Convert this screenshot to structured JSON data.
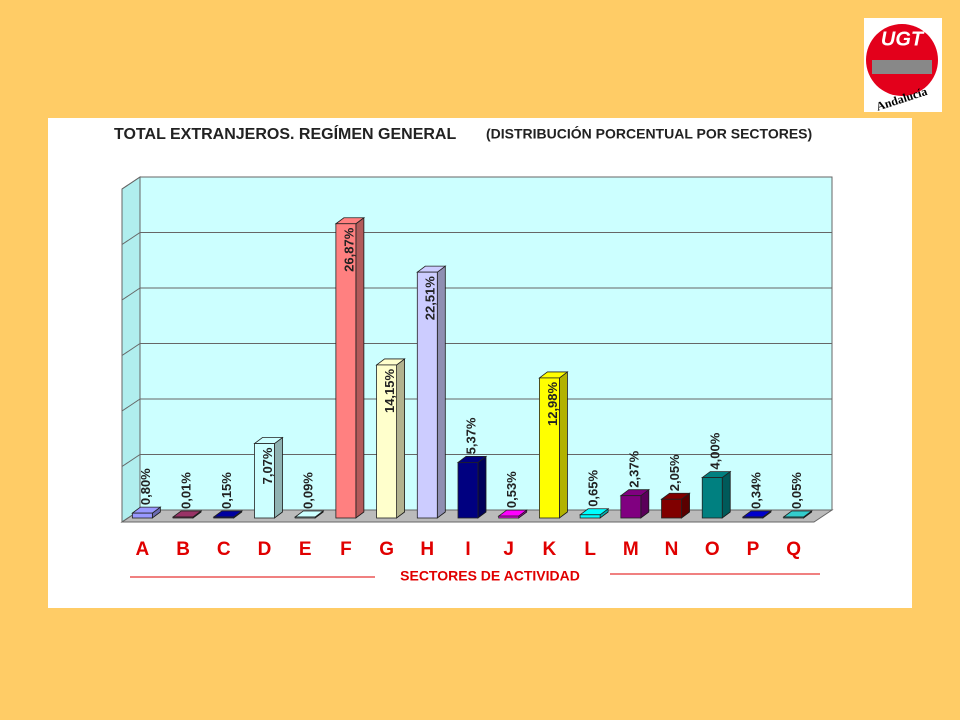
{
  "logo": {
    "text": "UGT",
    "region": "Andalucía"
  },
  "chart_data": {
    "type": "bar3d",
    "title": "TOTAL EXTRANJEROS. REGÍMEN GENERAL",
    "subtitle": "(DISTRIBUCIÓN PORCENTUAL POR SECTORES)",
    "x_label": "SECTORES DE ACTIVIDAD",
    "categories": [
      "A",
      "B",
      "C",
      "D",
      "E",
      "F",
      "G",
      "H",
      "I",
      "J",
      "K",
      "L",
      "M",
      "N",
      "O",
      "P",
      "Q"
    ],
    "values": [
      0.8,
      0.01,
      0.15,
      7.07,
      0.09,
      26.87,
      14.15,
      22.51,
      5.37,
      0.53,
      12.98,
      0.65,
      2.37,
      2.05,
      4.0,
      0.34,
      0.05
    ],
    "value_labels": [
      "0,80%",
      "0,01%",
      "0,15%",
      "7,07%",
      "0,09%",
      "26,87%",
      "14,15%",
      "22,51%",
      "5,37%",
      "0,53%",
      "12,98%",
      "0,65%",
      "2,37%",
      "2,05%",
      "4,00%",
      "0,34%",
      "0,05%"
    ],
    "colors": [
      "#9999ff",
      "#993366",
      "#0000a0",
      "#ccffff",
      "#ccffff",
      "#ff8080",
      "#ffffcc",
      "#ccccff",
      "#000080",
      "#ff00ff",
      "#ffff00",
      "#00ffff",
      "#800080",
      "#800000",
      "#008080",
      "#0000cc",
      "#33cccc"
    ],
    "ylim": [
      0,
      30
    ],
    "yticks": [
      0,
      5,
      10,
      15,
      20,
      25,
      30
    ],
    "grid": true
  }
}
